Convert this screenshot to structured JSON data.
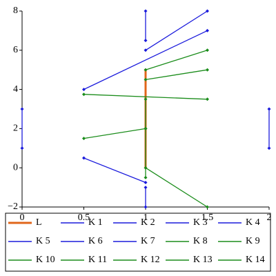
{
  "chart_data": {
    "type": "line",
    "xlim": [
      0,
      2
    ],
    "ylim": [
      -2,
      8
    ],
    "xticks": [
      0,
      0.5,
      1,
      1.5,
      2
    ],
    "yticks": [
      {
        "value": -2,
        "label": "−2"
      },
      0,
      2,
      4,
      6,
      8
    ],
    "series": [
      {
        "name": "L",
        "color": "#e0661a",
        "x": [
          1,
          1
        ],
        "y": [
          0,
          5
        ]
      },
      {
        "name": "K 1",
        "color": "#1a1adc",
        "x": [
          1,
          1
        ],
        "y": [
          6.5,
          8
        ]
      },
      {
        "name": "K 2",
        "color": "#1a1adc",
        "x": [
          1,
          1.5
        ],
        "y": [
          6,
          8
        ]
      },
      {
        "name": "K 3",
        "color": "#1a1adc",
        "x": [
          0.5,
          1.5
        ],
        "y": [
          4,
          7
        ]
      },
      {
        "name": "K 4",
        "color": "#1a1adc",
        "x": [
          0,
          0
        ],
        "y": [
          1,
          3
        ]
      },
      {
        "name": "K 5",
        "color": "#1a1adc",
        "x": [
          2,
          2
        ],
        "y": [
          1,
          3
        ]
      },
      {
        "name": "K 6",
        "color": "#1a1adc",
        "x": [
          0.5,
          1
        ],
        "y": [
          0.5,
          -0.75
        ]
      },
      {
        "name": "K 7",
        "color": "#1a1adc",
        "x": [
          1,
          1
        ],
        "y": [
          -1,
          -2
        ]
      },
      {
        "name": "K 8",
        "color": "#1a8c1a",
        "x": [
          1,
          1.5
        ],
        "y": [
          5,
          6
        ]
      },
      {
        "name": "K 9",
        "color": "#1a8c1a",
        "x": [
          1,
          1.5
        ],
        "y": [
          4.5,
          5
        ]
      },
      {
        "name": "K 10",
        "color": "#1a8c1a",
        "x": [
          0.5,
          1.5
        ],
        "y": [
          3.75,
          3.5
        ]
      },
      {
        "name": "K 11",
        "color": "#1a8c1a",
        "x": [
          0.5,
          1
        ],
        "y": [
          1.5,
          2
        ]
      },
      {
        "name": "K 12",
        "color": "#1a8c1a",
        "x": [
          1,
          1.5
        ],
        "y": [
          0,
          -2
        ]
      },
      {
        "name": "K 13",
        "color": "#1a8c1a",
        "x": [
          1,
          1
        ],
        "y": [
          2,
          3.5
        ]
      },
      {
        "name": "K 14",
        "color": "#1a8c1a",
        "x": [
          1,
          1
        ],
        "y": [
          -0.5,
          2
        ]
      }
    ]
  }
}
